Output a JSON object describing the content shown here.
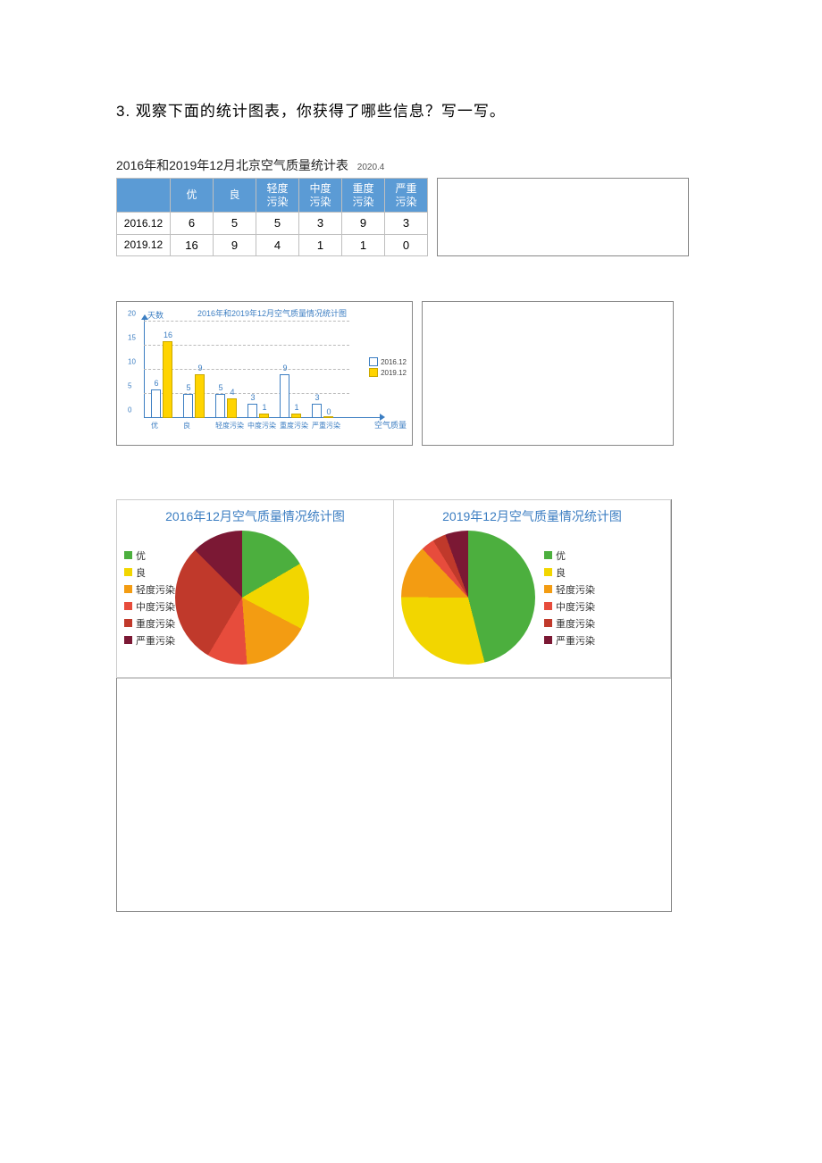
{
  "question": "3.  观察下面的统计图表，你获得了哪些信息？写一写。",
  "table": {
    "caption": "2016年和2019年12月北京空气质量统计表",
    "caption_sub": "2020.4",
    "columns": [
      "优",
      "良",
      "轻度\n污染",
      "中度\n污染",
      "重度\n污染",
      "严重\n污染"
    ],
    "rows": [
      {
        "label": "2016.12",
        "values": [
          6,
          5,
          5,
          3,
          9,
          3
        ]
      },
      {
        "label": "2019.12",
        "values": [
          16,
          9,
          4,
          1,
          1,
          0
        ]
      }
    ],
    "header_bg": "#5b9bd5",
    "header_color": "#ffffff",
    "border_color": "#bfbfbf"
  },
  "barchart": {
    "title": "2016年和2019年12月空气质量情况统计图",
    "y_label": "天数",
    "x_label": "空气质量",
    "categories": [
      "优",
      "良",
      "轻度污染",
      "中度污染",
      "重度污染",
      "严重污染"
    ],
    "series": [
      {
        "name": "2016.12",
        "fill": "#ffffff",
        "border": "#3c7ec2",
        "values": [
          6,
          5,
          5,
          3,
          9,
          3
        ]
      },
      {
        "name": "2019.12",
        "fill": "#ffd400",
        "border": "#c9a800",
        "values": [
          16,
          9,
          4,
          1,
          1,
          0
        ]
      }
    ],
    "ymax": 20,
    "ytick_step": 5,
    "axis_color": "#3c7ec2",
    "grid_color": "#bbbbbb",
    "label_color": "#3c7ec2"
  },
  "pies": {
    "legend_labels": [
      "优",
      "良",
      "轻度污染",
      "中度污染",
      "重度污染",
      "严重污染"
    ],
    "colors": [
      "#4caf3e",
      "#f2d600",
      "#f39c12",
      "#e74c3c",
      "#c0392b",
      "#7b1834"
    ],
    "left": {
      "title": "2016年12月空气质量情况统计图",
      "values": [
        6,
        5,
        5,
        3,
        9,
        3
      ]
    },
    "right": {
      "title": "2019年12月空气质量情况统计图",
      "values": [
        16,
        9,
        4,
        1,
        1,
        0
      ]
    }
  }
}
